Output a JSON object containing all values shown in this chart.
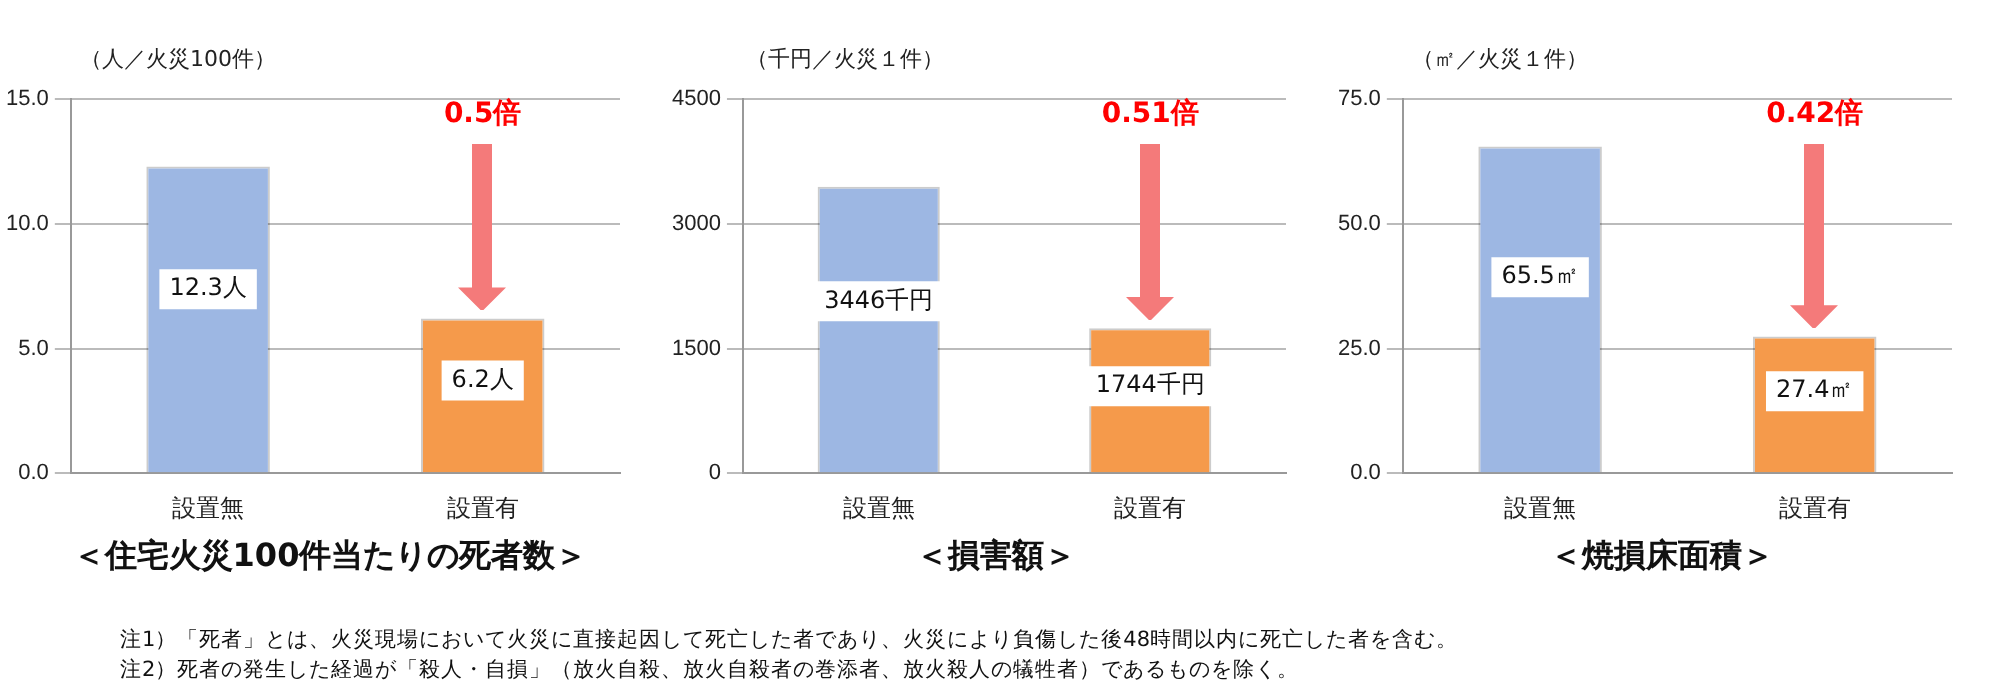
{
  "chart_data": [
    {
      "type": "bar",
      "title": "＜住宅火災100件当たりの死者数＞",
      "ylabel": "（人／火災100件）",
      "categories": [
        "設置無",
        "設置有"
      ],
      "values": [
        12.3,
        6.2
      ],
      "colors": [
        "#9db7e3",
        "#f59a4b"
      ],
      "value_labels": [
        "12.3人",
        "6.2人"
      ],
      "ylim": [
        0,
        15
      ],
      "yticks": [
        {
          "value": 0,
          "label": "0.0"
        },
        {
          "value": 5,
          "label": "5.0"
        },
        {
          "value": 10,
          "label": "10.0"
        },
        {
          "value": 15,
          "label": "15.0"
        }
      ],
      "grid": "y",
      "legend": false,
      "annotations": [
        "0.5倍",
        "注1）「死者」とは、火災現場において火災に直接起因して死亡した者であり、火災により負傷した後48時間以内に死亡した者を含む。",
        "注2）死者の発生した経過が「殺人・自損」（放火自殺、放火自殺者の巻添者、放火殺人の犠牲者）であるものを除く。"
      ]
    },
    {
      "type": "bar",
      "title": "＜損害額＞",
      "ylabel": "（千円／火災１件）",
      "categories": [
        "設置無",
        "設置有"
      ],
      "values": [
        3446,
        1744
      ],
      "colors": [
        "#9db7e3",
        "#f59a4b"
      ],
      "value_labels": [
        "3446千円",
        "1744千円"
      ],
      "ylim": [
        0,
        4500
      ],
      "yticks": [
        0,
        1500,
        3000,
        4500
      ],
      "grid": "y",
      "legend": false,
      "annotations": [
        "0.51倍"
      ]
    },
    {
      "type": "bar",
      "title": "＜焼損床面積＞",
      "ylabel": "（㎡／火災１件）",
      "categories": [
        "設置無",
        "設置有"
      ],
      "values": [
        65.5,
        27.4
      ],
      "colors": [
        "#9db7e3",
        "#f59a4b"
      ],
      "value_labels": [
        "65.5㎡",
        "27.4㎡"
      ],
      "ylim": [
        0,
        75
      ],
      "yticks": [
        {
          "value": 0,
          "label": "0.0"
        },
        {
          "value": 25,
          "label": "25.0"
        },
        {
          "value": 50,
          "label": "50.0"
        },
        {
          "value": 75,
          "label": "75.0"
        }
      ],
      "grid": "y",
      "legend": false,
      "annotations": [
        "0.42倍"
      ]
    }
  ]
}
